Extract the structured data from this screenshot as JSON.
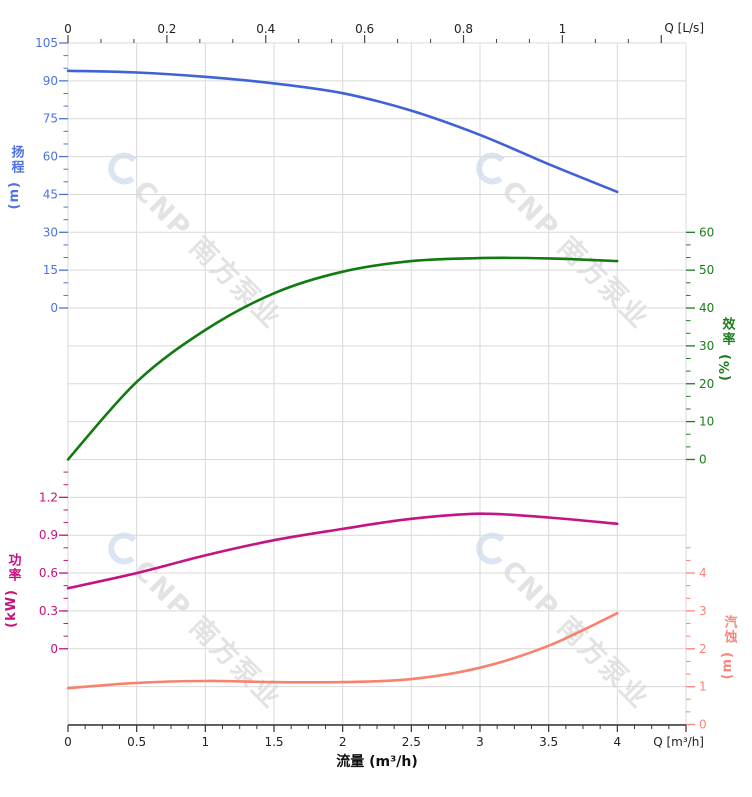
{
  "watermark": {
    "text": "CNP 南方泵业"
  },
  "chart_data": {
    "type": "line",
    "title": "",
    "grid": true,
    "legend": false,
    "x_label": "流量 (m³/h)",
    "x_unit_label": "Q [m³/h]",
    "x_ticks": [
      0,
      0.5,
      1,
      1.5,
      2,
      2.5,
      3,
      3.5,
      4
    ],
    "x_range": [
      0,
      4.5
    ],
    "x2_unit_label": "Q [L/s]",
    "x2_ticks": [
      0,
      0.2,
      0.4,
      0.6,
      0.8,
      1
    ],
    "x2_range": [
      0,
      1.25
    ],
    "x": [
      0,
      0.5,
      1,
      1.5,
      2,
      2.5,
      3,
      3.5,
      4
    ],
    "axes": {
      "head": {
        "title": "扬程",
        "unit": "(m)",
        "side": "left",
        "ticks": [
          105,
          90,
          75,
          60,
          45,
          30,
          15,
          0
        ],
        "color": "#4d73e0"
      },
      "efficiency": {
        "title": "效率",
        "unit": "(%)",
        "side": "right",
        "ticks": [
          60,
          50,
          40,
          30,
          20,
          10,
          0
        ],
        "color": "#1d7d1d"
      },
      "power": {
        "title": "功率",
        "unit": "(kW)",
        "side": "left",
        "ticks": [
          1.2,
          0.9,
          0.6,
          0.3,
          0
        ],
        "color": "#c2137f"
      },
      "npsh": {
        "title": "汽蚀",
        "unit": "(m)",
        "side": "right",
        "ticks": [
          4,
          3,
          2,
          1,
          0
        ],
        "color": "#fa8578"
      }
    },
    "series": [
      {
        "name": "扬程",
        "key": "head",
        "axis": "head",
        "unit": "m",
        "color": "#3f63d7",
        "values": [
          94,
          93.3,
          91.6,
          89,
          85.1,
          78.2,
          68.6,
          57,
          46
        ]
      },
      {
        "name": "效率",
        "key": "efficiency",
        "axis": "efficiency",
        "unit": "%",
        "color": "#117a11",
        "values": [
          0,
          20.5,
          34.2,
          43.9,
          49.6,
          52.4,
          53.2,
          53.1,
          52.4
        ]
      },
      {
        "name": "功率",
        "key": "power",
        "axis": "power",
        "unit": "kW",
        "color": "#c41383",
        "values": [
          0.48,
          0.6,
          0.74,
          0.86,
          0.95,
          1.03,
          1.07,
          1.04,
          0.99
        ]
      },
      {
        "name": "汽蚀",
        "key": "npsh",
        "axis": "npsh",
        "unit": "m",
        "color": "#f9826e",
        "values": [
          0.96,
          1.1,
          1.15,
          1.12,
          1.12,
          1.2,
          1.5,
          2.08,
          2.94
        ]
      }
    ]
  }
}
